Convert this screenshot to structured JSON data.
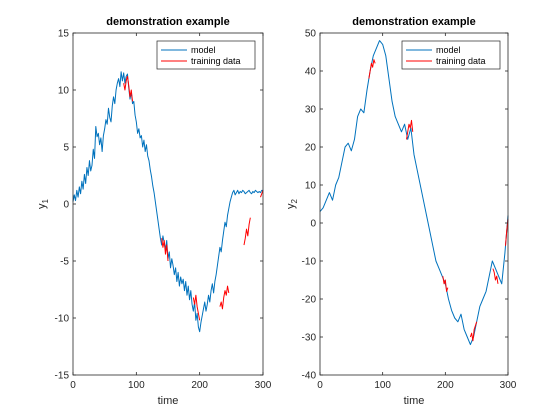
{
  "chart_data": [
    {
      "type": "line",
      "title": "demonstration example",
      "xlabel": "time",
      "ylabel_main": "y",
      "ylabel_sub": "1",
      "xlim": [
        0,
        300
      ],
      "ylim": [
        -15,
        15
      ],
      "xticks": [
        0,
        100,
        200,
        300
      ],
      "yticks": [
        -15,
        -10,
        -5,
        0,
        5,
        10,
        15
      ],
      "grid": false,
      "legend_position": "top-right",
      "series": [
        {
          "name": "model",
          "color": "#0072BD",
          "x": [
            0,
            2,
            4,
            6,
            8,
            10,
            12,
            14,
            16,
            18,
            20,
            22,
            24,
            26,
            28,
            30,
            32,
            34,
            36,
            38,
            40,
            42,
            44,
            46,
            48,
            50,
            52,
            54,
            56,
            58,
            60,
            62,
            64,
            66,
            68,
            70,
            72,
            74,
            76,
            78,
            80,
            82,
            84,
            86,
            88,
            90,
            92,
            94,
            96,
            98,
            100,
            102,
            104,
            106,
            108,
            110,
            112,
            114,
            116,
            118,
            120,
            122,
            124,
            126,
            128,
            130,
            132,
            134,
            136,
            138,
            140,
            142,
            144,
            146,
            148,
            150,
            152,
            154,
            156,
            158,
            160,
            162,
            164,
            166,
            168,
            170,
            172,
            174,
            176,
            178,
            180,
            182,
            184,
            186,
            188,
            190,
            192,
            194,
            196,
            198,
            200,
            202,
            204,
            206,
            208,
            210,
            212,
            214,
            216,
            218,
            220,
            222,
            224,
            226,
            228,
            230,
            232,
            234,
            236,
            238,
            240,
            242,
            244,
            246,
            248,
            250,
            252,
            254,
            256,
            258,
            260,
            262,
            264,
            266,
            268,
            270,
            272,
            274,
            276,
            278,
            280,
            282,
            284,
            286,
            288,
            290,
            292,
            294,
            296,
            298,
            300
          ],
          "values": [
            0.2,
            0.8,
            0.3,
            1.2,
            0.6,
            1.5,
            0.9,
            2.0,
            1.3,
            2.6,
            1.8,
            3.2,
            2.5,
            3.8,
            2.9,
            3.4,
            4.8,
            4.0,
            6.8,
            5.9,
            6.2,
            5.2,
            5.8,
            4.6,
            6.0,
            6.6,
            7.4,
            7.0,
            8.4,
            7.6,
            7.2,
            8.6,
            9.4,
            8.8,
            10.0,
            10.6,
            11.0,
            10.3,
            11.6,
            10.8,
            11.5,
            10.6,
            11.2,
            11.4,
            10.2,
            9.2,
            9.8,
            8.8,
            9.0,
            7.8,
            7.2,
            6.2,
            6.6,
            5.8,
            6.0,
            5.0,
            5.6,
            4.6,
            5.2,
            4.2,
            3.8,
            3.0,
            2.4,
            1.6,
            1.0,
            0.2,
            -0.6,
            -1.4,
            -2.2,
            -3.0,
            -3.6,
            -2.8,
            -3.4,
            -4.0,
            -3.2,
            -4.8,
            -4.2,
            -5.6,
            -4.8,
            -5.4,
            -6.2,
            -5.6,
            -6.8,
            -6.0,
            -7.2,
            -6.4,
            -7.0,
            -6.6,
            -7.6,
            -6.8,
            -8.0,
            -7.2,
            -8.4,
            -7.6,
            -8.8,
            -9.4,
            -8.6,
            -10.2,
            -9.6,
            -10.8,
            -11.2,
            -10.4,
            -9.8,
            -9.2,
            -8.6,
            -9.4,
            -8.8,
            -8.0,
            -8.6,
            -7.6,
            -7.0,
            -7.8,
            -6.8,
            -6.2,
            -5.4,
            -4.6,
            -3.8,
            -4.2,
            -3.2,
            -2.4,
            -1.6,
            -2.0,
            -1.0,
            -0.4,
            0.2,
            0.6,
            1.0,
            1.2,
            0.8,
            1.0,
            1.2,
            0.9,
            1.1,
            1.0,
            1.2,
            1.1,
            0.9,
            1.0,
            1.1,
            1.2,
            1.0,
            0.9,
            1.1,
            1.0,
            1.2,
            1.1,
            1.0,
            1.1,
            1.0,
            1.2,
            1.2
          ]
        },
        {
          "name": "training data",
          "color": "#FF0000",
          "x": [
            80,
            82,
            84,
            86,
            88,
            90,
            92,
            94,
            140,
            142,
            144,
            146,
            148,
            150,
            190,
            192,
            194,
            196,
            198,
            200,
            232,
            234,
            236,
            238,
            240,
            242,
            244,
            246,
            270,
            272,
            274,
            276,
            278,
            280,
            296,
            298,
            300
          ],
          "values": [
            10.6,
            10.0,
            10.8,
            11.2,
            10.4,
            9.4,
            10.0,
            9.0,
            -3.0,
            -3.8,
            -3.2,
            -4.4,
            -3.6,
            -5.0,
            -8.2,
            -8.8,
            -8.0,
            -9.0,
            -9.6,
            -10.2,
            -9.0,
            -8.6,
            -9.2,
            -8.2,
            -7.6,
            -8.0,
            -7.2,
            -7.8,
            -3.6,
            -3.0,
            -2.2,
            -2.8,
            -1.8,
            -1.2,
            0.6,
            0.9,
            1.2
          ]
        }
      ]
    },
    {
      "type": "line",
      "title": "demonstration example",
      "xlabel": "time",
      "ylabel_main": "y",
      "ylabel_sub": "2",
      "xlim": [
        0,
        300
      ],
      "ylim": [
        -40,
        50
      ],
      "xticks": [
        0,
        100,
        200,
        300
      ],
      "yticks": [
        -40,
        -30,
        -20,
        -10,
        0,
        10,
        20,
        30,
        40,
        50
      ],
      "grid": false,
      "legend_position": "top-right",
      "series": [
        {
          "name": "model",
          "color": "#0072BD",
          "x": [
            0,
            5,
            10,
            15,
            20,
            25,
            30,
            35,
            40,
            45,
            50,
            55,
            60,
            65,
            70,
            75,
            80,
            85,
            90,
            95,
            100,
            105,
            110,
            115,
            120,
            125,
            130,
            135,
            140,
            145,
            150,
            155,
            160,
            165,
            170,
            175,
            180,
            185,
            190,
            195,
            200,
            205,
            210,
            215,
            220,
            225,
            230,
            235,
            240,
            245,
            250,
            255,
            260,
            265,
            270,
            275,
            280,
            285,
            290,
            295,
            300
          ],
          "values": [
            3,
            4,
            6,
            8,
            6,
            10,
            12,
            16,
            20,
            21,
            19,
            22,
            28,
            30,
            29,
            35,
            40,
            44,
            46,
            48,
            47,
            44,
            38,
            32,
            28,
            26,
            24,
            26,
            22,
            25,
            18,
            14,
            10,
            6,
            2,
            -2,
            -6,
            -10,
            -12,
            -14,
            -16,
            -20,
            -23,
            -25,
            -26,
            -24,
            -28,
            -30,
            -32,
            -30,
            -26,
            -22,
            -20,
            -18,
            -14,
            -10,
            -12,
            -14,
            -16,
            -8,
            2
          ]
        },
        {
          "name": "training data",
          "color": "#FF0000",
          "x": [
            78,
            80,
            82,
            84,
            86,
            88,
            138,
            140,
            142,
            144,
            146,
            148,
            196,
            198,
            200,
            202,
            204,
            240,
            242,
            244,
            246,
            248,
            250,
            276,
            278,
            280,
            282,
            284,
            296,
            298,
            300
          ],
          "values": [
            38,
            40,
            42,
            41,
            43,
            42,
            22,
            24,
            26,
            25,
            27,
            24,
            -14,
            -16,
            -15,
            -18,
            -17,
            -30,
            -29,
            -31,
            -28,
            -27,
            -26,
            -12,
            -13,
            -15,
            -14,
            -16,
            -6,
            -2,
            1
          ]
        }
      ]
    }
  ]
}
